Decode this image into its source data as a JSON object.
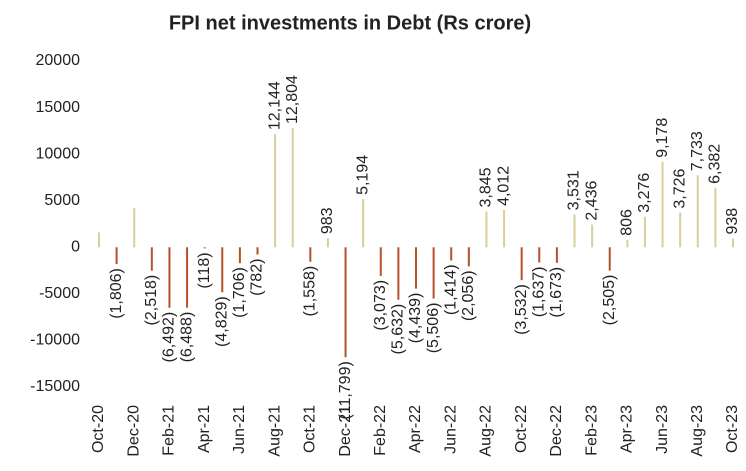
{
  "chart_data": {
    "type": "bar",
    "title": "FPI net investments in Debt (Rs crore)",
    "categories": [
      "Oct-20",
      null,
      "Dec-20",
      null,
      "Feb-21",
      null,
      "Apr-21",
      null,
      "Jun-21",
      null,
      "Aug-21",
      null,
      "Oct-21",
      null,
      "Dec-21",
      null,
      "Feb-22",
      null,
      "Apr-22",
      null,
      "Jun-22",
      null,
      "Aug-22",
      null,
      "Oct-22",
      null,
      "Dec-22",
      null,
      "Feb-23",
      null,
      "Apr-23",
      null,
      "Jun-23",
      null,
      "Aug-23",
      null,
      "Oct-23"
    ],
    "values": [
      1600,
      -1806,
      4200,
      -2518,
      -6492,
      -6488,
      -118,
      -4829,
      -1706,
      -782,
      12144,
      12804,
      -1558,
      983,
      -11799,
      5194,
      -3073,
      -5632,
      -4439,
      -5506,
      -1414,
      -2056,
      3845,
      4012,
      -3532,
      -1637,
      -1673,
      3531,
      2436,
      -2505,
      806,
      3276,
      9178,
      3726,
      7733,
      6382,
      938
    ],
    "value_labels": [
      null,
      "(1,806)",
      null,
      "(2,518)",
      "(6,492)",
      "(6,488)",
      "(118)",
      "(4,829)",
      "(1,706)",
      "(782)",
      "12,144",
      "12,804",
      "(1,558)",
      "983",
      "(11,799)",
      "5,194",
      "(3,073)",
      "(5,632)",
      "(4,439)",
      "(5,506)",
      "(1,414)",
      "(2,056)",
      "3,845",
      "4,012",
      "(3,532)",
      "(1,637)",
      "(1,673)",
      "3,531",
      "2,436",
      "(2,505)",
      "806",
      "3,276",
      "9,178",
      "3,726",
      "7,733",
      "6,382",
      "938"
    ],
    "positive_color": "#d8cf9c",
    "negative_color": "#b4532a",
    "ylim": [
      -15000,
      20000
    ],
    "yticks": [
      20000,
      15000,
      10000,
      5000,
      0,
      -5000,
      -10000,
      -15000
    ],
    "grid": false
  }
}
